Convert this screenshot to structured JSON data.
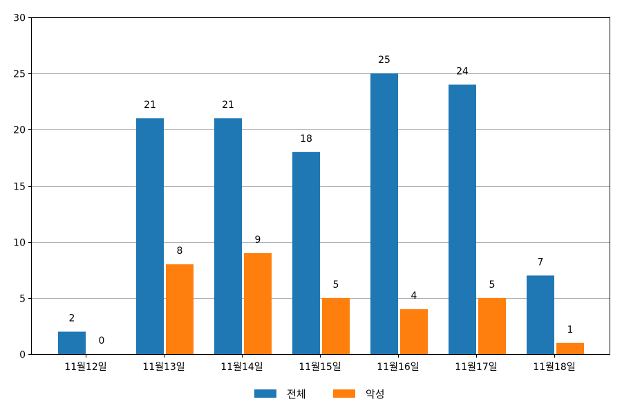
{
  "chart_data": {
    "type": "bar",
    "categories": [
      "11월12일",
      "11월13일",
      "11월14일",
      "11월15일",
      "11월16일",
      "11월17일",
      "11월18일"
    ],
    "series": [
      {
        "name": "전체",
        "color": "#1f77b4",
        "values": [
          2,
          21,
          21,
          18,
          25,
          24,
          7
        ]
      },
      {
        "name": "악성",
        "color": "#ff7f0e",
        "values": [
          0,
          8,
          9,
          5,
          4,
          5,
          1
        ]
      }
    ],
    "title": "",
    "xlabel": "",
    "ylabel": "",
    "ylim": [
      0,
      30
    ],
    "yticks": [
      0,
      5,
      10,
      15,
      20,
      25,
      30
    ],
    "grid": "horizontal",
    "legend": "bottom-center",
    "data_labels": true
  }
}
